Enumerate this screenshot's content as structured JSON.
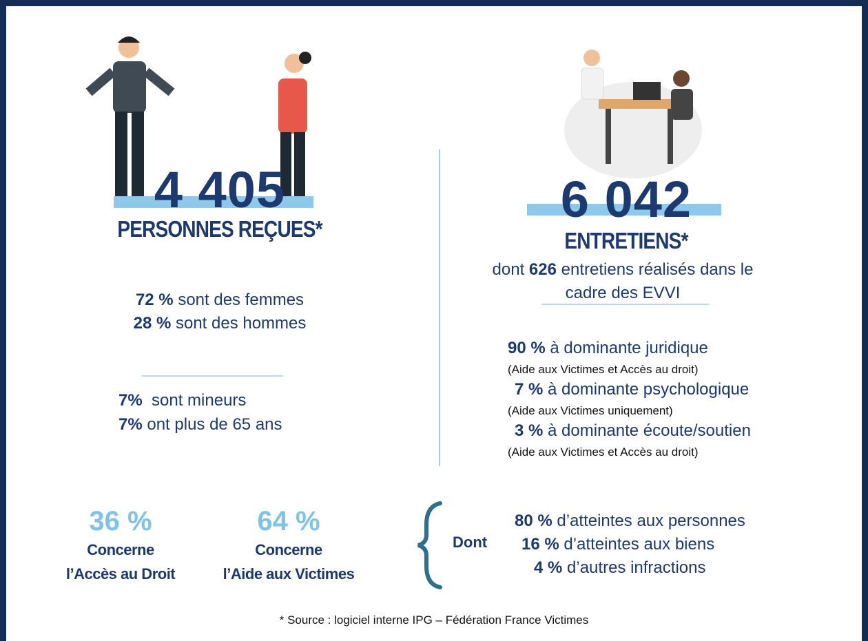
{
  "left": {
    "number": "4 405",
    "label": "PERSONNES REÇUES*",
    "gender": [
      {
        "value": "72 %",
        "text": "sont des femmes"
      },
      {
        "value": "28 %",
        "text": "sont des hommes"
      }
    ],
    "age": [
      {
        "value": "7%",
        "text": " sont mineurs"
      },
      {
        "value": "7%",
        "text": "ont plus de 65 ans"
      }
    ],
    "split": [
      {
        "value": "36 %",
        "line1": "Concerne",
        "line2": "l’Accès au Droit"
      },
      {
        "value": "64 %",
        "line1": "Concerne",
        "line2": "l’Aide aux Victimes"
      }
    ]
  },
  "right": {
    "number": "6 042",
    "label": "ENTRETIENS*",
    "sub": {
      "prefix": "dont",
      "value": "626",
      "suffix": "entretiens réalisés dans le cadre des EVVI"
    },
    "domains": [
      {
        "value": "90 %",
        "text": "à dominante juridique",
        "note": "(Aide aux Victimes et Accès au droit)"
      },
      {
        "value": "7 %",
        "text": "à dominante psychologique",
        "note": "(Aide aux Victimes uniquement)"
      },
      {
        "value": "3 %",
        "text": "à dominante écoute/soutien",
        "note": "(Aide aux Victimes et Accès au droit)"
      }
    ],
    "dont": "Dont",
    "offences": [
      {
        "value": "80 %",
        "text": "d’atteintes aux personnes"
      },
      {
        "value": "16 %",
        "text": "d’atteintes aux biens"
      },
      {
        "value": "4 %",
        "text": "d’autres infractions"
      }
    ]
  },
  "footer": "* Source : logiciel interne IPG – Fédération France Victimes"
}
